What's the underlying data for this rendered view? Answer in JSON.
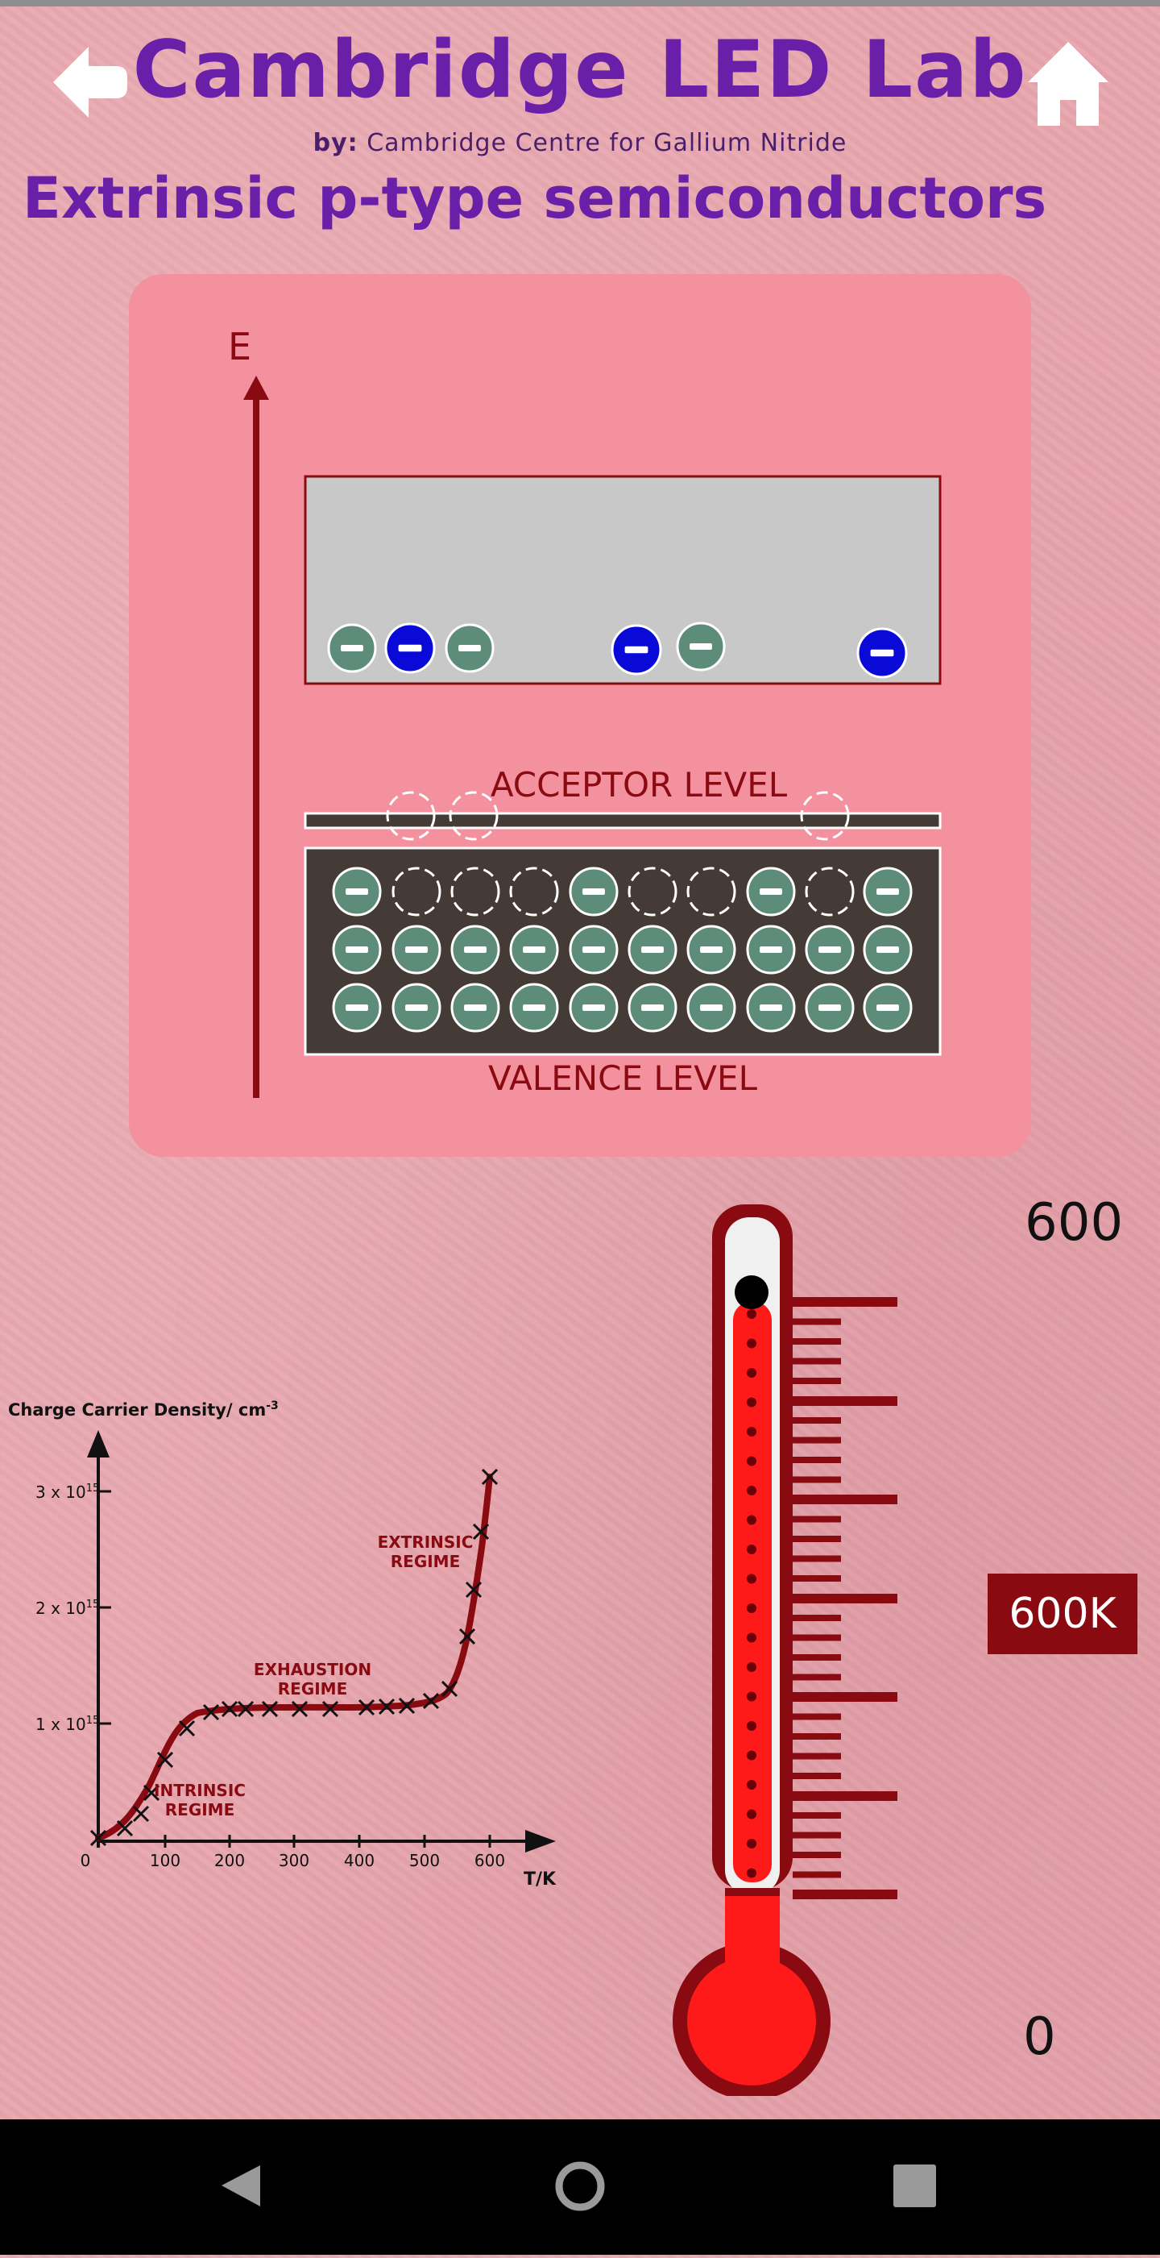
{
  "header": {
    "title": "Cambridge LED Lab",
    "by_prefix": "by:",
    "subtitle": "Cambridge Centre for Gallium Nitride",
    "page_heading": "Extrinsic p-type semiconductors"
  },
  "icons": {
    "back": "back-arrow-icon",
    "home": "home-icon"
  },
  "diagram": {
    "energy_label": "E",
    "acceptor_label": "ACCEPTOR LEVEL",
    "valence_label": "VALENCE LEVEL",
    "colors": {
      "conduction_band": "#c8c8c8",
      "valence_band": "#443b37",
      "electron": "#5e8c7a",
      "free_electron": "#0a0ad8",
      "axis": "#8a0a12"
    }
  },
  "thermometer": {
    "scale_max": "600",
    "scale_min": "0",
    "current_label": "600K",
    "level_fraction": 1.0
  },
  "graph": {
    "ylabel": "Charge Carrier Density/ cm",
    "ylabel_sup": "-3",
    "xlabel": "T/K",
    "y_ticks": [
      {
        "base": "1 x 10",
        "sup": "15"
      },
      {
        "base": "2 x 10",
        "sup": "15"
      },
      {
        "base": "3 x 10",
        "sup": "15"
      }
    ],
    "x_ticks": [
      "0",
      "100",
      "200",
      "300",
      "400",
      "500",
      "600"
    ],
    "regimes": [
      {
        "lines": [
          "INTRINSIC",
          "REGIME"
        ]
      },
      {
        "lines": [
          "EXHAUSTION",
          "REGIME"
        ]
      },
      {
        "lines": [
          "EXTRINSIC",
          "REGIME"
        ]
      }
    ]
  },
  "navbar": {
    "back": "nav-back-icon",
    "home": "nav-home-icon",
    "recents": "nav-recents-icon"
  }
}
